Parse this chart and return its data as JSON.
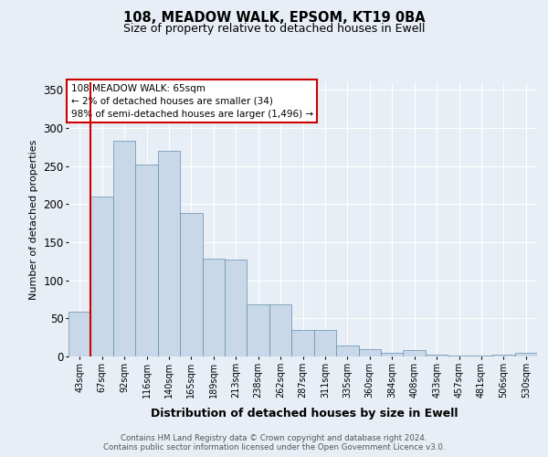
{
  "title": "108, MEADOW WALK, EPSOM, KT19 0BA",
  "subtitle": "Size of property relative to detached houses in Ewell",
  "xlabel": "Distribution of detached houses by size in Ewell",
  "ylabel": "Number of detached properties",
  "footer1": "Contains HM Land Registry data © Crown copyright and database right 2024.",
  "footer2": "Contains public sector information licensed under the Open Government Licence v3.0.",
  "annotation_line1": "108 MEADOW WALK: 65sqm",
  "annotation_line2": "← 2% of detached houses are smaller (34)",
  "annotation_line3": "98% of semi-detached houses are larger (1,496) →",
  "bar_color": "#c8d8e8",
  "bar_edge_color": "#6090b0",
  "highlight_color": "#cc0000",
  "categories": [
    "43sqm",
    "67sqm",
    "92sqm",
    "116sqm",
    "140sqm",
    "165sqm",
    "189sqm",
    "213sqm",
    "238sqm",
    "262sqm",
    "287sqm",
    "311sqm",
    "335sqm",
    "360sqm",
    "384sqm",
    "408sqm",
    "433sqm",
    "457sqm",
    "481sqm",
    "506sqm",
    "530sqm"
  ],
  "values": [
    59,
    210,
    283,
    252,
    270,
    188,
    128,
    127,
    68,
    68,
    35,
    35,
    14,
    10,
    5,
    8,
    2,
    1,
    1,
    3,
    5
  ],
  "highlight_index": 1,
  "ylim": [
    0,
    360
  ],
  "yticks": [
    0,
    50,
    100,
    150,
    200,
    250,
    300,
    350
  ],
  "background_color": "#e8eef5",
  "plot_bg_color": "#e8eef5",
  "grid_color": "#ffffff",
  "annotation_box_color": "#ffffff",
  "annotation_box_edge_color": "#cc0000"
}
